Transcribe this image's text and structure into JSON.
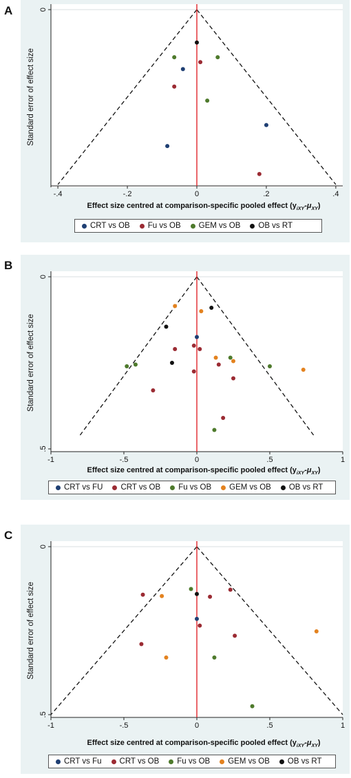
{
  "colors": {
    "CRT vs OB A": "#2c4f7e",
    "navy": "#1f3f73",
    "maroon": "#9b2b33",
    "green": "#4e7a2c",
    "orange": "#e3821f",
    "black": "#111111",
    "pooled_line": "#e0262b",
    "panel_bg": "#eaf2f3"
  },
  "chart_data": [
    {
      "type": "scatter",
      "panel_label": "A",
      "title": "",
      "xlabel": "Effect size centred at comparison-specific pooled effect (y",
      "xlabel_suffix": "iXY",
      "xlabel_mu": "-μ",
      "xlabel_mu_sub": "XY",
      "xlabel_close": ")",
      "ylabel": "Standard error of effect size",
      "xlim": [
        -0.42,
        0.42
      ],
      "ylim": [
        0,
        0.25
      ],
      "y_reversed": true,
      "x_ticks": [
        -0.4,
        -0.2,
        0,
        0.2,
        0.4
      ],
      "x_tick_labels": [
        "-.4",
        "-.2",
        "0",
        ".2",
        ".4"
      ],
      "y_ticks": [
        0
      ],
      "y_tick_labels": [
        "0"
      ],
      "funnel": {
        "apex": [
          0,
          0
        ],
        "base_left": [
          -0.4,
          0.25
        ],
        "base_right": [
          0.4,
          0.25
        ]
      },
      "legend": [
        "CRT vs OB",
        "Fu vs OB",
        "GEM vs OB",
        "OB vs RT"
      ],
      "legend_colors": [
        "#1f3f73",
        "#9b2b33",
        "#4e7a2c",
        "#111111"
      ],
      "series": [
        {
          "name": "CRT vs OB",
          "color": "#1f3f73",
          "points": [
            [
              -0.04,
              0.085
            ],
            [
              0.2,
              0.165
            ],
            [
              -0.085,
              0.195
            ]
          ]
        },
        {
          "name": "Fu vs OB",
          "color": "#9b2b33",
          "points": [
            [
              0.01,
              0.075
            ],
            [
              -0.065,
              0.11
            ],
            [
              0.18,
              0.235
            ]
          ]
        },
        {
          "name": "GEM vs OB",
          "color": "#4e7a2c",
          "points": [
            [
              -0.065,
              0.068
            ],
            [
              0.06,
              0.068
            ],
            [
              0.03,
              0.13
            ]
          ]
        },
        {
          "name": "OB vs RT",
          "color": "#111111",
          "points": [
            [
              0.0,
              0.047
            ]
          ]
        }
      ]
    },
    {
      "type": "scatter",
      "panel_label": "B",
      "title": "",
      "xlabel": "Effect size centred at comparison-specific pooled effect (y",
      "xlabel_suffix": "iXY",
      "xlabel_mu": "-μ",
      "xlabel_mu_sub": "XY",
      "xlabel_close": ")",
      "ylabel": "Standard error of effect size",
      "xlim": [
        -1.0,
        1.0
      ],
      "ylim": [
        0,
        0.5
      ],
      "y_reversed": true,
      "x_ticks": [
        -1,
        -0.5,
        0,
        0.5,
        1
      ],
      "x_tick_labels": [
        "-1",
        "-.5",
        "0",
        ".5",
        "1"
      ],
      "y_ticks": [
        0,
        0.5
      ],
      "y_tick_labels": [
        "0",
        ".5"
      ],
      "funnel": {
        "apex": [
          0,
          0
        ],
        "base_left": [
          -0.8,
          0.46
        ],
        "base_right": [
          0.8,
          0.46
        ]
      },
      "legend": [
        "CRT vs FU",
        "CRT vs OB",
        "Fu vs OB",
        "GEM vs OB",
        "OB vs RT"
      ],
      "legend_colors": [
        "#1f3f73",
        "#9b2b33",
        "#4e7a2c",
        "#e3821f",
        "#111111"
      ],
      "series": [
        {
          "name": "CRT vs FU",
          "color": "#1f3f73",
          "points": [
            [
              0.0,
              0.175
            ]
          ]
        },
        {
          "name": "CRT vs OB",
          "color": "#9b2b33",
          "points": [
            [
              -0.02,
              0.2
            ],
            [
              0.02,
              0.21
            ],
            [
              -0.15,
              0.21
            ],
            [
              0.15,
              0.255
            ],
            [
              -0.02,
              0.275
            ],
            [
              0.25,
              0.295
            ],
            [
              -0.3,
              0.33
            ],
            [
              0.18,
              0.41
            ]
          ]
        },
        {
          "name": "Fu vs OB",
          "color": "#4e7a2c",
          "points": [
            [
              0.23,
              0.235
            ],
            [
              -0.42,
              0.255
            ],
            [
              -0.48,
              0.26
            ],
            [
              0.5,
              0.26
            ],
            [
              0.12,
              0.445
            ]
          ]
        },
        {
          "name": "GEM vs OB",
          "color": "#e3821f",
          "points": [
            [
              -0.15,
              0.085
            ],
            [
              0.03,
              0.1
            ],
            [
              0.13,
              0.235
            ],
            [
              0.25,
              0.245
            ],
            [
              0.73,
              0.27
            ]
          ]
        },
        {
          "name": "OB vs RT",
          "color": "#111111",
          "points": [
            [
              0.1,
              0.09
            ],
            [
              -0.21,
              0.145
            ],
            [
              -0.17,
              0.25
            ]
          ]
        }
      ]
    },
    {
      "type": "scatter",
      "panel_label": "C",
      "title": "",
      "xlabel": "Effect size centred at comparison-specific pooled effect (y",
      "xlabel_suffix": "iXY",
      "xlabel_mu": "-μ",
      "xlabel_mu_sub": "XY",
      "xlabel_close": ")",
      "ylabel": "Standard error of effect size",
      "xlim": [
        -1.0,
        1.0
      ],
      "ylim": [
        0,
        0.5
      ],
      "y_reversed": true,
      "x_ticks": [
        -1,
        -0.5,
        0,
        0.5,
        1
      ],
      "x_tick_labels": [
        "-1",
        "-.5",
        "0",
        ".5",
        "1"
      ],
      "y_ticks": [
        0,
        0.5
      ],
      "y_tick_labels": [
        "0",
        ".5"
      ],
      "funnel": {
        "apex": [
          0,
          0
        ],
        "base_left": [
          -1.0,
          0.5
        ],
        "base_right": [
          1.0,
          0.5
        ]
      },
      "legend": [
        "CRT vs Fu",
        "CRT vs OB",
        "Fu vs OB",
        "GEM vs OB",
        "OB vs RT"
      ],
      "legend_colors": [
        "#1f3f73",
        "#9b2b33",
        "#4e7a2c",
        "#e3821f",
        "#111111"
      ],
      "series": [
        {
          "name": "CRT vs Fu",
          "color": "#1f3f73",
          "points": [
            [
              0.0,
              0.215
            ]
          ]
        },
        {
          "name": "CRT vs OB",
          "color": "#9b2b33",
          "points": [
            [
              -0.37,
              0.143
            ],
            [
              0.23,
              0.128
            ],
            [
              0.09,
              0.149
            ],
            [
              0.02,
              0.235
            ],
            [
              0.26,
              0.265
            ],
            [
              -0.38,
              0.29
            ]
          ]
        },
        {
          "name": "Fu vs OB",
          "color": "#4e7a2c",
          "points": [
            [
              -0.04,
              0.126
            ],
            [
              0.12,
              0.33
            ],
            [
              0.38,
              0.475
            ]
          ]
        },
        {
          "name": "GEM vs OB",
          "color": "#e3821f",
          "points": [
            [
              -0.24,
              0.147
            ],
            [
              0.82,
              0.252
            ],
            [
              -0.21,
              0.33
            ]
          ]
        },
        {
          "name": "OB vs RT",
          "color": "#111111",
          "points": [
            [
              -0.0,
              0.141
            ]
          ]
        }
      ]
    }
  ]
}
